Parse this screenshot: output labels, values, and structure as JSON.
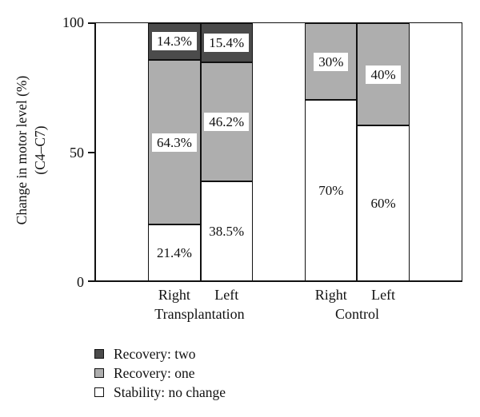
{
  "chart_data": {
    "type": "bar",
    "stacked": true,
    "title": "",
    "ylabel": "Change in motor level (%)",
    "ylabel_sub": "(C4–C7)",
    "ylim": [
      0,
      100
    ],
    "yticks": [
      0,
      50,
      100
    ],
    "grid": false,
    "legend_position": "bottom-left",
    "groups": [
      {
        "label": "Transplantation",
        "bars": [
          {
            "label": "Right",
            "segments": [
              {
                "series": "Stability: no change",
                "value": 21.4,
                "text": "21.4%"
              },
              {
                "series": "Recovery: one",
                "value": 64.3,
                "text": "64.3%"
              },
              {
                "series": "Recovery: two",
                "value": 14.3,
                "text": "14.3%"
              }
            ]
          },
          {
            "label": "Left",
            "segments": [
              {
                "series": "Stability: no change",
                "value": 38.5,
                "text": "38.5%"
              },
              {
                "series": "Recovery: one",
                "value": 46.2,
                "text": "46.2%"
              },
              {
                "series": "Recovery: two",
                "value": 15.4,
                "text": "15.4%"
              }
            ]
          }
        ]
      },
      {
        "label": "Control",
        "bars": [
          {
            "label": "Right",
            "segments": [
              {
                "series": "Stability: no change",
                "value": 70,
                "text": "70%"
              },
              {
                "series": "Recovery: one",
                "value": 30,
                "text": "30%"
              }
            ]
          },
          {
            "label": "Left",
            "segments": [
              {
                "series": "Stability: no change",
                "value": 60,
                "text": "60%"
              },
              {
                "series": "Recovery: one",
                "value": 40,
                "text": "40%"
              }
            ]
          }
        ]
      }
    ],
    "legend": [
      {
        "label": "Recovery: two",
        "color": "#4b4b4b"
      },
      {
        "label": "Recovery: one",
        "color": "#aeaeae"
      },
      {
        "label": "Stability: no change",
        "color": "#ffffff"
      }
    ],
    "colors": {
      "line": "#111111",
      "dark_segment": "#4b4b4b",
      "gray_segment": "#aeaeae",
      "white_segment": "#ffffff"
    }
  }
}
